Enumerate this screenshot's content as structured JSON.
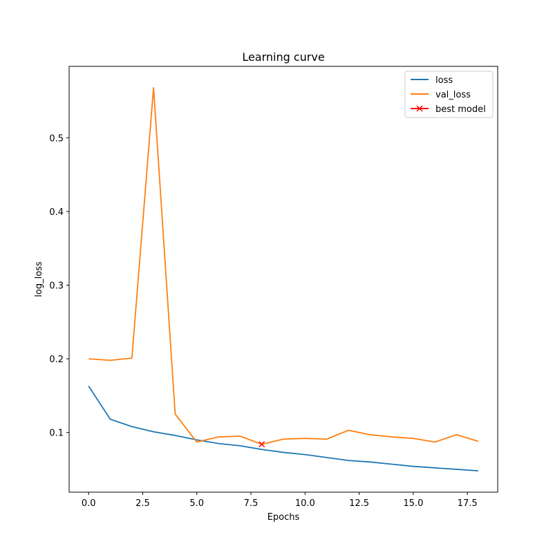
{
  "chart_data": {
    "type": "line",
    "title": "Learning curve",
    "xlabel": "Epochs",
    "ylabel": "log_loss",
    "xlim": [
      -0.9,
      18.9
    ],
    "ylim": [
      0.019,
      0.597
    ],
    "x_ticks": [
      0.0,
      2.5,
      5.0,
      7.5,
      10.0,
      12.5,
      15.0,
      17.5
    ],
    "x_tick_labels": [
      "0.0",
      "2.5",
      "5.0",
      "7.5",
      "10.0",
      "12.5",
      "15.0",
      "17.5"
    ],
    "y_ticks": [
      0.1,
      0.2,
      0.3,
      0.4,
      0.5
    ],
    "y_tick_labels": [
      "0.1",
      "0.2",
      "0.3",
      "0.4",
      "0.5"
    ],
    "grid": false,
    "legend_position": "top-right",
    "series": [
      {
        "name": "loss",
        "color": "#1f77b4",
        "x": [
          0,
          1,
          2,
          3,
          4,
          5,
          6,
          7,
          8,
          9,
          10,
          11,
          12,
          13,
          14,
          15,
          16,
          17,
          18
        ],
        "y": [
          0.163,
          0.118,
          0.108,
          0.101,
          0.096,
          0.09,
          0.085,
          0.082,
          0.077,
          0.073,
          0.07,
          0.066,
          0.062,
          0.06,
          0.057,
          0.054,
          0.052,
          0.05,
          0.048
        ]
      },
      {
        "name": "val_loss",
        "color": "#ff7f0e",
        "x": [
          0,
          1,
          2,
          3,
          4,
          5,
          6,
          7,
          8,
          9,
          10,
          11,
          12,
          13,
          14,
          15,
          16,
          17,
          18
        ],
        "y": [
          0.2,
          0.198,
          0.201,
          0.568,
          0.125,
          0.087,
          0.094,
          0.095,
          0.084,
          0.091,
          0.092,
          0.091,
          0.103,
          0.097,
          0.094,
          0.092,
          0.087,
          0.097,
          0.088
        ]
      }
    ],
    "markers": [
      {
        "name": "best model",
        "color": "#ff0000",
        "symbol": "x",
        "x": 8,
        "y": 0.084
      }
    ],
    "legend": [
      {
        "label": "loss",
        "color": "#1f77b4",
        "kind": "line"
      },
      {
        "label": "val_loss",
        "color": "#ff7f0e",
        "kind": "line"
      },
      {
        "label": "best model",
        "color": "#ff0000",
        "kind": "marker-x"
      }
    ]
  }
}
